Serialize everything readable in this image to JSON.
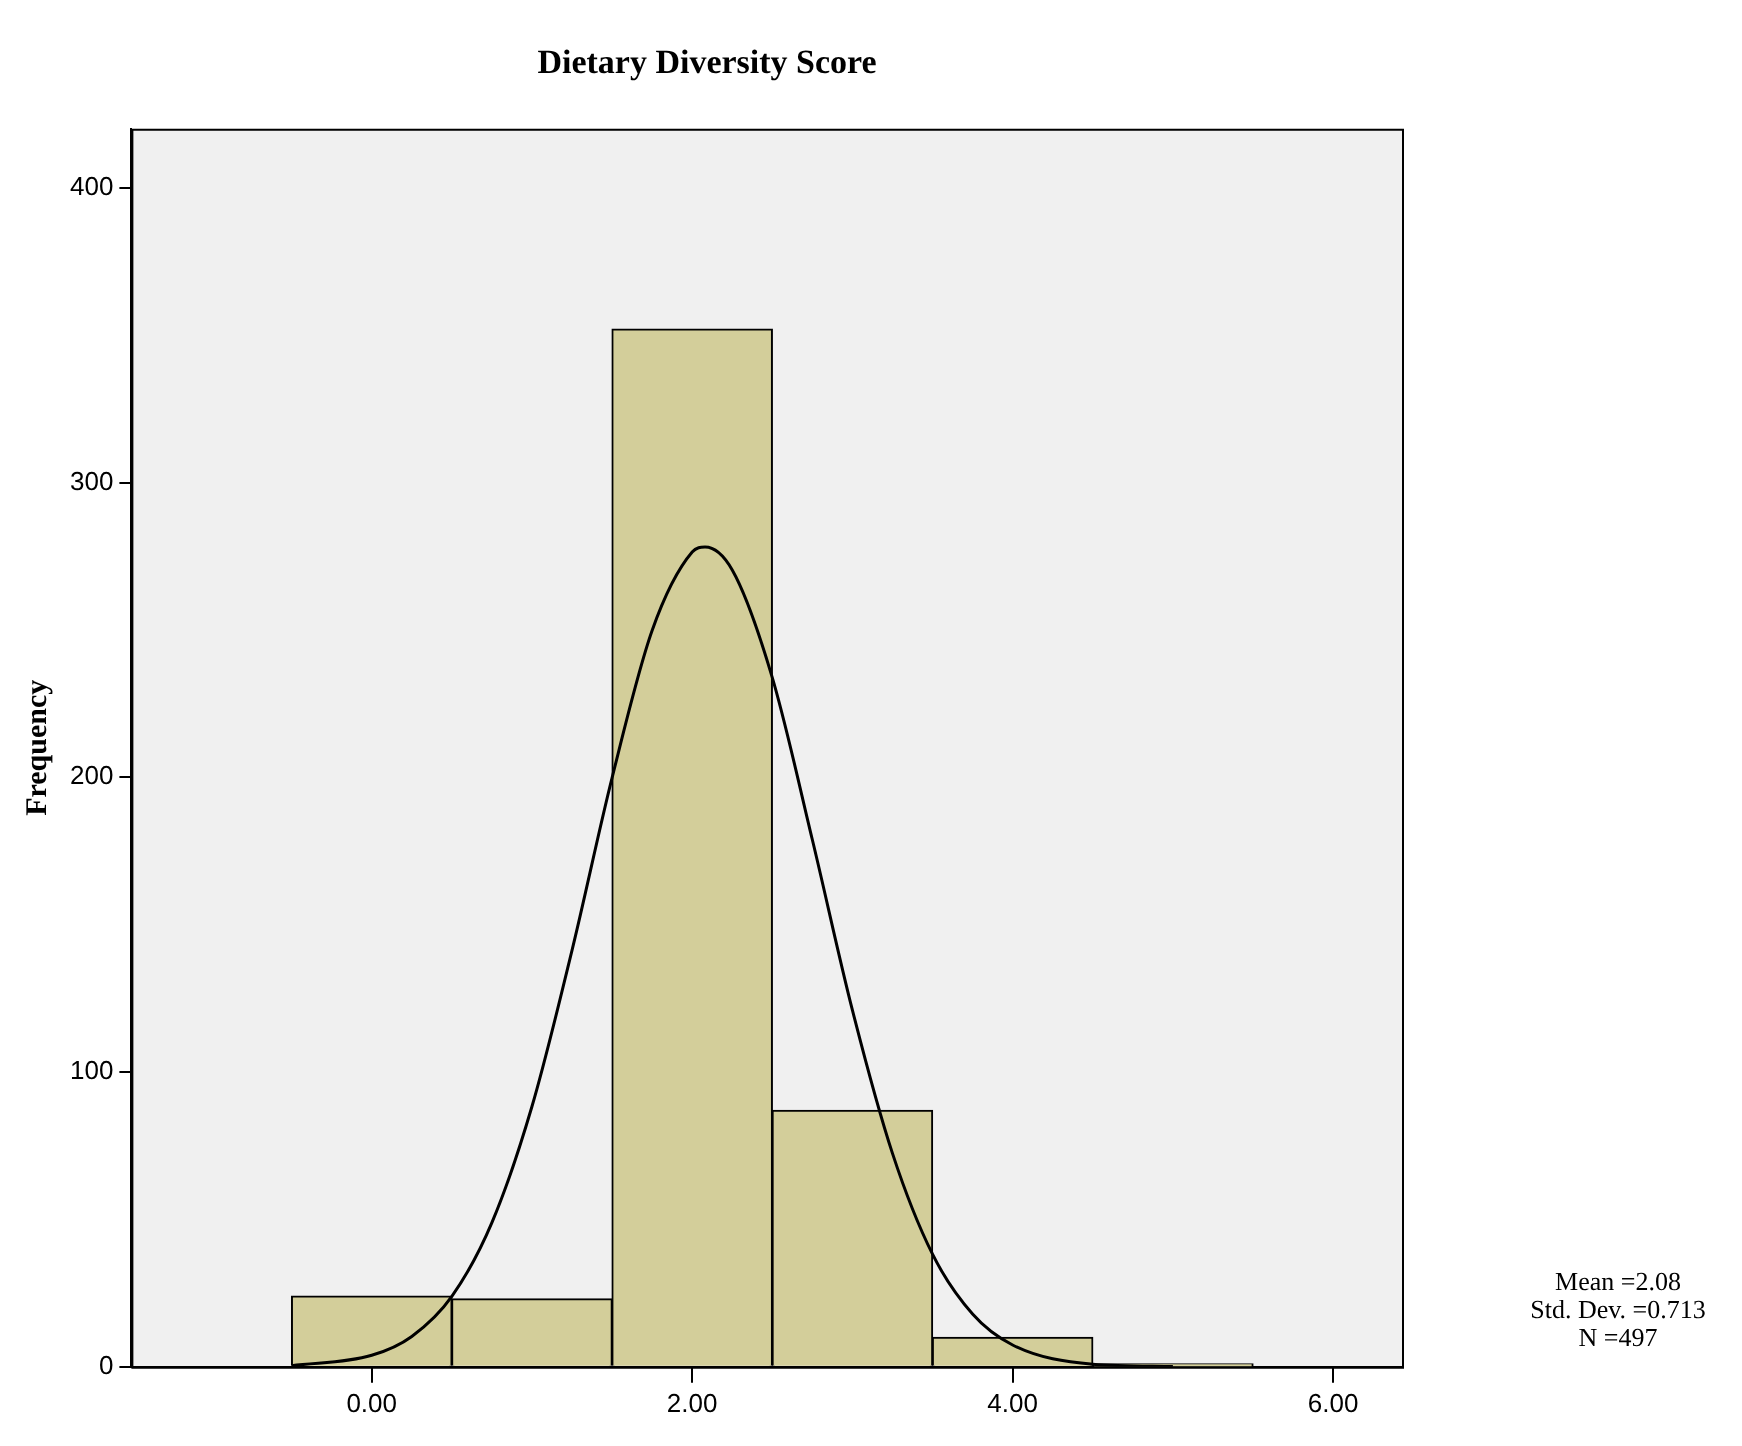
{
  "chart_data": {
    "type": "histogram",
    "title": "Dietary Diversity Score",
    "ylabel": "Frequency",
    "bins": [
      -0.5,
      0.5,
      1.5,
      2.5,
      3.5,
      4.5,
      5.5
    ],
    "values": [
      24,
      23,
      352,
      87,
      10,
      1
    ],
    "color": "#d3ce9a",
    "series": [
      {
        "type": "line",
        "color": "#000000",
        "x": [
          -0.5,
          0,
          0.25,
          0.5,
          0.75,
          1,
          1.25,
          1.5,
          1.75,
          2,
          2.08,
          2.25,
          2.5,
          2.75,
          3,
          3.25,
          3.5,
          3.75,
          4,
          4.5,
          5
        ],
        "values": [
          0.4,
          3.9,
          10.3,
          23.9,
          48.9,
          88.3,
          141.3,
          199.8,
          249.8,
          276.4,
          278.1,
          270.3,
          233.8,
          178.8,
          121,
          72.4,
          38.2,
          17.9,
          7.4,
          0.9,
          0.1
        ]
      }
    ],
    "xlim": [
      -1.5,
      6.43
    ],
    "ylim": [
      0,
      420
    ],
    "xticks": [
      {
        "value": 0,
        "label": "0.00"
      },
      {
        "value": 2,
        "label": "2.00"
      },
      {
        "value": 4,
        "label": "4.00"
      },
      {
        "value": 6,
        "label": "6.00"
      }
    ],
    "yticks": [
      0,
      100,
      200,
      300,
      400
    ],
    "grid": false,
    "legend": false,
    "annotations": [
      "Mean =2.08",
      "Std. Dev. =0.713",
      "N =497"
    ]
  }
}
